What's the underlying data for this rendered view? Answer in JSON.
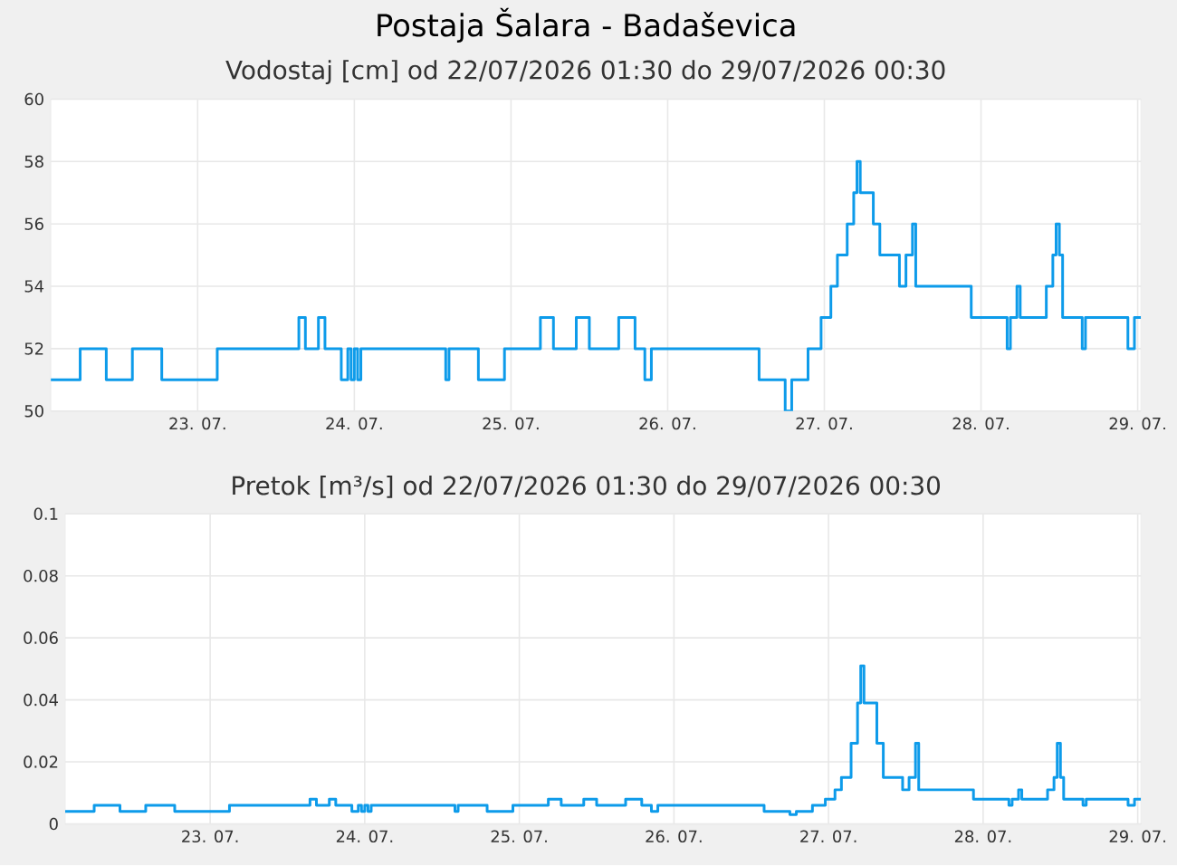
{
  "chart_data": [
    {
      "type": "step",
      "title": "Postaja Šalara - Badaševica",
      "subtitle": "Vodostaj [cm] od 22/07/2026 01:30 do 29/07/2026 00:30",
      "x": [
        "2026-07-22T01:30",
        "2026-07-22T06:00",
        "2026-07-22T10:00",
        "2026-07-22T14:00",
        "2026-07-22T18:30",
        "2026-07-23T03:00",
        "2026-07-23T15:30",
        "2026-07-23T16:30",
        "2026-07-23T18:30",
        "2026-07-23T19:30",
        "2026-07-23T22:00",
        "2026-07-23T23:00",
        "2026-07-23T23:30",
        "2026-07-24T00:00",
        "2026-07-24T00:30",
        "2026-07-24T01:00",
        "2026-07-24T14:00",
        "2026-07-24T14:30",
        "2026-07-24T19:00",
        "2026-07-24T23:00",
        "2026-07-25T04:30",
        "2026-07-25T06:30",
        "2026-07-25T10:00",
        "2026-07-25T12:00",
        "2026-07-25T16:30",
        "2026-07-25T19:00",
        "2026-07-25T20:30",
        "2026-07-25T21:30",
        "2026-07-26T14:00",
        "2026-07-26T18:00",
        "2026-07-26T19:00",
        "2026-07-26T21:30",
        "2026-07-26T23:30",
        "2026-07-27T01:00",
        "2026-07-27T02:00",
        "2026-07-27T03:30",
        "2026-07-27T04:30",
        "2026-07-27T05:00",
        "2026-07-27T05:30",
        "2026-07-27T07:30",
        "2026-07-27T08:30",
        "2026-07-27T11:30",
        "2026-07-27T12:30",
        "2026-07-27T13:30",
        "2026-07-27T14:00",
        "2026-07-27T22:30",
        "2026-07-28T04:00",
        "2026-07-28T04:30",
        "2026-07-28T05:30",
        "2026-07-28T06:00",
        "2026-07-28T10:00",
        "2026-07-28T11:00",
        "2026-07-28T11:30",
        "2026-07-28T12:00",
        "2026-07-28T12:30",
        "2026-07-28T15:30",
        "2026-07-28T16:00",
        "2026-07-28T22:30",
        "2026-07-28T23:30",
        "2026-07-29T00:30"
      ],
      "values": [
        51,
        52,
        51,
        52,
        51,
        52,
        53,
        52,
        53,
        52,
        51,
        52,
        51,
        52,
        51,
        52,
        51,
        52,
        51,
        52,
        53,
        52,
        53,
        52,
        53,
        52,
        51,
        52,
        51,
        50,
        51,
        52,
        53,
        54,
        55,
        56,
        57,
        58,
        57,
        56,
        55,
        54,
        55,
        56,
        54,
        53,
        52,
        53,
        54,
        53,
        54,
        55,
        56,
        55,
        53,
        52,
        53,
        52,
        53,
        53
      ],
      "color": "#0d9bea",
      "grid": true,
      "xlim": [
        "2026-07-22T01:30",
        "2026-07-29T00:30"
      ],
      "xticks": [
        {
          "value": "2026-07-23",
          "label": "23. 07."
        },
        {
          "value": "2026-07-24",
          "label": "24. 07."
        },
        {
          "value": "2026-07-25",
          "label": "25. 07."
        },
        {
          "value": "2026-07-26",
          "label": "26. 07."
        },
        {
          "value": "2026-07-27",
          "label": "27. 07."
        },
        {
          "value": "2026-07-28",
          "label": "28. 07."
        },
        {
          "value": "2026-07-29",
          "label": "29. 07."
        }
      ],
      "ylim": [
        50,
        60
      ],
      "yticks": [
        50,
        52,
        54,
        56,
        58,
        60
      ]
    },
    {
      "type": "step",
      "title": "Pretok [m³/s] od 22/07/2026 01:30 do 29/07/2026 00:30",
      "x": [
        "2026-07-22T01:30",
        "2026-07-22T06:00",
        "2026-07-22T10:00",
        "2026-07-22T14:00",
        "2026-07-22T18:30",
        "2026-07-23T03:00",
        "2026-07-23T15:30",
        "2026-07-23T16:30",
        "2026-07-23T18:30",
        "2026-07-23T19:30",
        "2026-07-23T22:00",
        "2026-07-23T23:00",
        "2026-07-23T23:30",
        "2026-07-24T00:00",
        "2026-07-24T00:30",
        "2026-07-24T01:00",
        "2026-07-24T14:00",
        "2026-07-24T14:30",
        "2026-07-24T19:00",
        "2026-07-24T23:00",
        "2026-07-25T04:30",
        "2026-07-25T06:30",
        "2026-07-25T10:00",
        "2026-07-25T12:00",
        "2026-07-25T16:30",
        "2026-07-25T19:00",
        "2026-07-25T20:30",
        "2026-07-25T21:30",
        "2026-07-26T14:00",
        "2026-07-26T18:00",
        "2026-07-26T19:00",
        "2026-07-26T21:30",
        "2026-07-26T23:30",
        "2026-07-27T01:00",
        "2026-07-27T02:00",
        "2026-07-27T03:30",
        "2026-07-27T04:30",
        "2026-07-27T05:00",
        "2026-07-27T05:30",
        "2026-07-27T07:30",
        "2026-07-27T08:30",
        "2026-07-27T11:30",
        "2026-07-27T12:30",
        "2026-07-27T13:30",
        "2026-07-27T14:00",
        "2026-07-27T22:30",
        "2026-07-28T04:00",
        "2026-07-28T04:30",
        "2026-07-28T05:30",
        "2026-07-28T06:00",
        "2026-07-28T10:00",
        "2026-07-28T11:00",
        "2026-07-28T11:30",
        "2026-07-28T12:00",
        "2026-07-28T12:30",
        "2026-07-28T15:30",
        "2026-07-28T16:00",
        "2026-07-28T22:30",
        "2026-07-28T23:30",
        "2026-07-29T00:30"
      ],
      "values": [
        0.004,
        0.006,
        0.004,
        0.006,
        0.004,
        0.006,
        0.008,
        0.006,
        0.008,
        0.006,
        0.004,
        0.006,
        0.004,
        0.006,
        0.004,
        0.006,
        0.004,
        0.006,
        0.004,
        0.006,
        0.008,
        0.006,
        0.008,
        0.006,
        0.008,
        0.006,
        0.004,
        0.006,
        0.004,
        0.003,
        0.004,
        0.006,
        0.008,
        0.011,
        0.015,
        0.026,
        0.039,
        0.051,
        0.039,
        0.026,
        0.015,
        0.011,
        0.015,
        0.026,
        0.011,
        0.008,
        0.006,
        0.008,
        0.011,
        0.008,
        0.011,
        0.015,
        0.026,
        0.015,
        0.008,
        0.006,
        0.008,
        0.006,
        0.008,
        0.008
      ],
      "color": "#0d9bea",
      "grid": true,
      "xlim": [
        "2026-07-22T01:30",
        "2026-07-29T00:30"
      ],
      "xticks": [
        {
          "value": "2026-07-23",
          "label": "23. 07."
        },
        {
          "value": "2026-07-24",
          "label": "24. 07."
        },
        {
          "value": "2026-07-25",
          "label": "25. 07."
        },
        {
          "value": "2026-07-26",
          "label": "26. 07."
        },
        {
          "value": "2026-07-27",
          "label": "27. 07."
        },
        {
          "value": "2026-07-28",
          "label": "28. 07."
        },
        {
          "value": "2026-07-29",
          "label": "29. 07."
        }
      ],
      "ylim": [
        0,
        0.1
      ],
      "yticks": [
        0,
        0.02,
        0.04,
        0.06,
        0.08,
        0.1
      ]
    }
  ]
}
